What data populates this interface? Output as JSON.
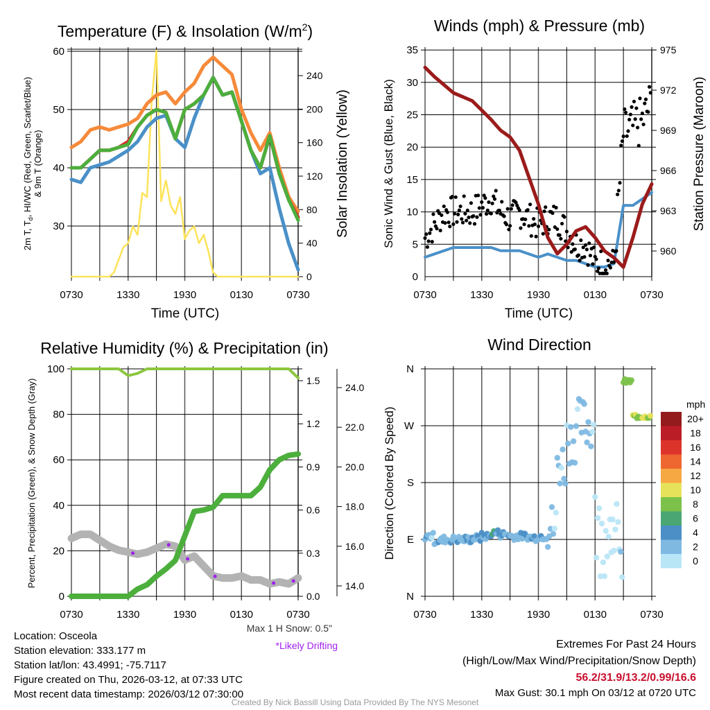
{
  "chart_data": [
    {
      "type": "line",
      "title": "Temperature (F) & Insolation (W/m",
      "title_sup": "2",
      "title_end": ")",
      "xlabel": "Time (UTC)",
      "x_ticks": [
        "0730",
        "1330",
        "1930",
        "0130",
        "0730"
      ],
      "ylabel_line1": "2m T, T",
      "ylabel_sub": "d",
      "ylabel_line1_end": ", HI/WC (Red, Green, Scarlet/Blue)",
      "ylabel_line2": "& 9m T (Orange)",
      "ylabel_right": "Solar Insolation (Yellow)",
      "ylim": [
        21.3,
        60.5
      ],
      "ylim_right": [
        0,
        270
      ],
      "y_ticks": [
        "30",
        "40",
        "50",
        "60"
      ],
      "y_ticks_right": [
        "0",
        "40",
        "80",
        "120",
        "160",
        "200",
        "240"
      ],
      "x_hours": "hourly, 0 = 0730 UTC",
      "series": [
        {
          "name": "9m T",
          "color": "#f68a3a",
          "values": [
            43.5,
            44.5,
            46.5,
            47,
            46.5,
            47,
            47.5,
            48.5,
            51,
            52.5,
            53,
            51,
            53,
            54.5,
            57.5,
            59,
            57.5,
            56,
            50,
            46,
            43,
            46,
            40,
            35,
            32.5
          ]
        },
        {
          "name": "HI/WC",
          "color": "#d62a2a",
          "values": [
            40,
            40,
            41.5,
            43,
            43,
            43.5,
            44.5,
            47,
            49,
            50,
            49.5,
            45,
            50,
            51,
            52.5,
            55.5,
            52.5,
            53,
            48,
            43,
            40,
            45.5,
            39,
            34.5,
            31.5
          ]
        },
        {
          "name": "Td",
          "color": "#4a90c8",
          "values": [
            38,
            37.5,
            40,
            40.5,
            41,
            42,
            43,
            44.5,
            47,
            48.5,
            49,
            45,
            43.5,
            48.5,
            52.5,
            55.5,
            52.5,
            53,
            48,
            43,
            39,
            40,
            33,
            27,
            22.5
          ]
        },
        {
          "name": "2m T",
          "color": "#4caf3c",
          "values": [
            40,
            40,
            41.5,
            43,
            43,
            43.5,
            44,
            47,
            49,
            50,
            49.5,
            45,
            50,
            51,
            52.5,
            55.5,
            52.5,
            53,
            48,
            43,
            40,
            45.5,
            39,
            34.5,
            31
          ]
        },
        {
          "name": "Solar Insolation",
          "color": "#fde35a",
          "axis": "right",
          "x_step_hours": 0.5,
          "values": [
            0,
            0,
            0,
            0,
            0,
            0,
            0,
            0,
            0,
            5,
            20,
            35,
            40,
            60,
            50,
            100,
            95,
            210,
            270,
            90,
            115,
            85,
            75,
            95,
            45,
            55,
            60,
            40,
            50,
            30,
            5,
            0,
            0,
            0,
            0,
            0,
            0,
            0,
            0,
            0,
            0,
            0,
            0,
            0,
            0,
            0,
            0,
            0,
            0
          ]
        }
      ]
    },
    {
      "type": "line",
      "title": "Winds (mph) & Pressure (mb)",
      "xlabel": "Time (UTC)",
      "x_ticks": [
        "0730",
        "1330",
        "1930",
        "0130",
        "0730"
      ],
      "ylabel": "Sonic Wind & Gust (Blue, Black)",
      "ylabel_right": "Station Pressure (Maroon)",
      "ylim": [
        0,
        35
      ],
      "ylim_right": [
        958,
        975
      ],
      "y_ticks": [
        "0",
        "5",
        "10",
        "15",
        "20",
        "25",
        "30",
        "35"
      ],
      "y_ticks_right": [
        "960",
        "963",
        "966",
        "969",
        "972",
        "975"
      ],
      "series": [
        {
          "name": "Sonic Wind",
          "color": "#4a90c8",
          "values": [
            3,
            3.5,
            4,
            4.5,
            4.5,
            4.5,
            4.5,
            4.5,
            4,
            4,
            4,
            3.5,
            3,
            3.5,
            3,
            2.5,
            2.5,
            2,
            1.5,
            1.5,
            2,
            11,
            11,
            12,
            13
          ]
        },
        {
          "name": "Gust",
          "color": "#000000",
          "type": "scatter",
          "values": [
            6,
            8,
            10,
            10,
            10,
            10,
            11,
            12,
            10,
            9,
            10,
            9,
            8,
            9,
            9,
            7,
            5,
            5,
            2,
            2,
            2,
            22,
            23,
            24,
            27
          ]
        },
        {
          "name": "Station Pressure",
          "color": "#9b1b1b",
          "axis": "right",
          "values": [
            973.7,
            973,
            972.4,
            971.8,
            971.5,
            971.2,
            970.5,
            969.8,
            969,
            968.5,
            967.5,
            965.5,
            963.5,
            961,
            959.8,
            960.5,
            961.5,
            961.8,
            961,
            960,
            959.5,
            958.8,
            961,
            963.5,
            965
          ]
        }
      ]
    },
    {
      "type": "line",
      "title": "Relative Humidity (%) & Precipitation (in)",
      "x_ticks": [
        "0730",
        "1330",
        "1930",
        "0130",
        "0730"
      ],
      "ylabel": "Percent, Precipitation (Green), & Snow Depth (Gray)",
      "ylim": [
        0,
        100
      ],
      "y_ticks": [
        "0",
        "20",
        "40",
        "60",
        "80",
        "100"
      ],
      "y_ticks_precip": [
        "0.0",
        "0.3",
        "0.6",
        "0.9",
        "1.2",
        "1.5"
      ],
      "y_ticks_snow": [
        "14.0",
        "16.0",
        "18.0",
        "20.0",
        "22.0",
        "24.0"
      ],
      "series": [
        {
          "name": "Relative Humidity",
          "color": "#8cc63f",
          "values": [
            100,
            100,
            100,
            100,
            100,
            100,
            97,
            98,
            100,
            100,
            100,
            100,
            100,
            100,
            100,
            100,
            100,
            100,
            100,
            100,
            100,
            100,
            100,
            100,
            96
          ]
        },
        {
          "name": "Precipitation",
          "color": "#4caf3c",
          "axis": "precip",
          "values": [
            0,
            0,
            0,
            0,
            0,
            0,
            0,
            0.05,
            0.08,
            0.14,
            0.19,
            0.25,
            0.42,
            0.59,
            0.6,
            0.62,
            0.7,
            0.7,
            0.7,
            0.7,
            0.76,
            0.88,
            0.95,
            0.98,
            0.99
          ]
        },
        {
          "name": "Snow Depth",
          "color": "#b3b3b3",
          "axis": "snow",
          "values": [
            16.4,
            16.6,
            16.6,
            16.3,
            16.0,
            15.8,
            15.7,
            15.6,
            15.7,
            15.9,
            16.1,
            16.0,
            15.3,
            15.5,
            15.0,
            14.5,
            14.4,
            14.4,
            14.5,
            14.3,
            14.3,
            14.1,
            14.2,
            14.1,
            14.4
          ]
        },
        {
          "name": "Likely Drifting",
          "color": "#a020f0",
          "type": "scatter",
          "hours": [
            6.5,
            10.3,
            12.3,
            15.2,
            21.4,
            23.5
          ]
        }
      ],
      "max_snow_note": "Max 1 H Snow: 0.5\"",
      "drift_note": "*Likely Drifting"
    },
    {
      "type": "scatter",
      "title": "Wind Direction",
      "ylabel": "Direction (Colored By Speed)",
      "x_ticks": [
        "0730",
        "1330",
        "1930",
        "0130",
        "0730"
      ],
      "y_ticks": [
        "N",
        "E",
        "S",
        "W",
        "N"
      ],
      "ylim": [
        0,
        360
      ],
      "direction_deg": [
        95,
        88,
        90,
        90,
        90,
        92,
        95,
        100,
        98,
        95,
        95,
        93,
        95,
        110,
        210,
        250,
        275,
        270,
        120,
        60,
        80,
        340,
        285,
        285,
        282
      ],
      "speed_mph": [
        3,
        3,
        3.5,
        3.5,
        3.5,
        3.5,
        4,
        5,
        4,
        3.5,
        3.5,
        4,
        3.5,
        2.5,
        2.5,
        3,
        3,
        2.5,
        0.5,
        0.5,
        1,
        9,
        10,
        11,
        12
      ],
      "colorbar": {
        "title": "mph",
        "labels": [
          "20+",
          "18",
          "16",
          "14",
          "12",
          "10",
          "8",
          "6",
          "4",
          "2",
          "0"
        ],
        "colors": [
          "#931a1d",
          "#bb1d26",
          "#dc342b",
          "#ee6630",
          "#f6a843",
          "#e6e25a",
          "#7cc24a",
          "#4aa774",
          "#4b8fc6",
          "#7fb9e2",
          "#b9e6f7"
        ]
      }
    }
  ],
  "info": {
    "location": "Location: Osceola",
    "elevation": "Station elevation: 333.177 m",
    "latlon": "Station lat/lon: 43.4991; -75.7117",
    "created": "Figure created on Thu, 2026-03-12, at 07:33 UTC",
    "recent": "Most recent data timestamp: 2026/03/12 07:30:00"
  },
  "extremes": {
    "title": "Extremes For Past 24 Hours",
    "subtitle": "(High/Low/Max Wind/Precipitation/Snow Depth)",
    "values": "56.2/31.9/13.2/0.99/16.6",
    "max_gust": "Max Gust: 30.1 mph On 03/12 at 0720 UTC"
  },
  "credit": "Created By Nick Bassill Using Data Provided By The NYS Mesonet"
}
